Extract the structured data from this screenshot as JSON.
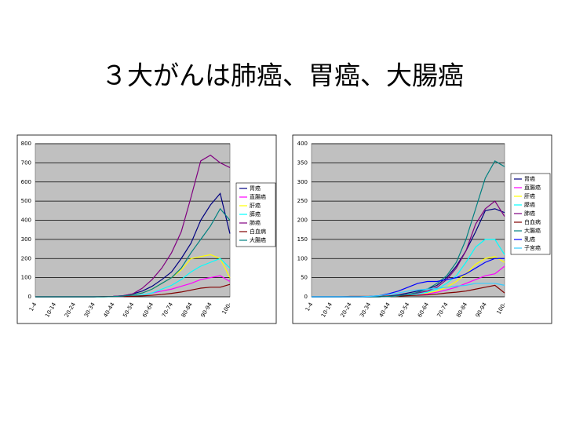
{
  "title": "３大がんは肺癌、胃癌、大腸癌",
  "chart_data": [
    {
      "type": "line",
      "categories": [
        "1-4",
        null,
        "10-14",
        null,
        "20-24",
        null,
        "30-34",
        null,
        "40-44",
        null,
        "50-54",
        null,
        "60-64",
        null,
        "70-74",
        null,
        "80-84",
        null,
        "90-94",
        null,
        "100-"
      ],
      "ylim": [
        0,
        800
      ],
      "yticks": [
        0,
        100,
        200,
        300,
        400,
        500,
        600,
        700,
        800
      ],
      "grid": true,
      "legend": "right",
      "series": [
        {
          "name": "胃癌",
          "color": "#000080",
          "values": [
            0,
            0,
            0,
            0,
            0,
            0,
            0,
            1,
            2,
            5,
            15,
            30,
            55,
            90,
            130,
            200,
            280,
            400,
            480,
            540,
            330
          ]
        },
        {
          "name": "直腸癌",
          "color": "#ff00ff",
          "values": [
            0,
            0,
            0,
            0,
            0,
            0,
            0,
            0,
            1,
            2,
            5,
            10,
            20,
            30,
            40,
            55,
            70,
            90,
            100,
            110,
            80
          ]
        },
        {
          "name": "肝癌",
          "color": "#ffff00",
          "values": [
            0,
            0,
            0,
            0,
            0,
            0,
            0,
            0,
            1,
            4,
            10,
            20,
            40,
            70,
            100,
            140,
            200,
            210,
            220,
            200,
            100
          ]
        },
        {
          "name": "膵癌",
          "color": "#00ffff",
          "values": [
            0,
            0,
            0,
            0,
            0,
            0,
            0,
            0,
            1,
            2,
            5,
            10,
            20,
            40,
            60,
            90,
            130,
            160,
            180,
            200,
            150
          ]
        },
        {
          "name": "肺癌",
          "color": "#800080",
          "values": [
            0,
            0,
            0,
            0,
            0,
            0,
            0,
            1,
            2,
            6,
            15,
            45,
            90,
            150,
            230,
            340,
            520,
            710,
            740,
            700,
            675
          ]
        },
        {
          "name": "白血病",
          "color": "#800000",
          "values": [
            0,
            0,
            0,
            0,
            0,
            0,
            0,
            1,
            1,
            2,
            3,
            5,
            8,
            12,
            18,
            25,
            35,
            45,
            50,
            50,
            65
          ]
        },
        {
          "name": "大腸癌",
          "color": "#008080",
          "values": [
            0,
            0,
            0,
            0,
            0,
            0,
            0,
            0,
            1,
            4,
            10,
            20,
            40,
            70,
            100,
            150,
            230,
            300,
            370,
            460,
            400
          ]
        }
      ]
    },
    {
      "type": "line",
      "categories": [
        "1-4",
        null,
        "10-14",
        null,
        "20-24",
        null,
        "30-34",
        null,
        "40-44",
        null,
        "50-54",
        null,
        "60-64",
        null,
        "70-74",
        null,
        "80-84",
        null,
        "90-94",
        null,
        "100-"
      ],
      "ylim": [
        0,
        400
      ],
      "yticks": [
        0,
        50,
        100,
        150,
        200,
        250,
        300,
        350,
        400
      ],
      "grid": true,
      "legend": "right",
      "series": [
        {
          "name": "胃癌",
          "color": "#000080",
          "values": [
            0,
            0,
            0,
            0,
            0,
            0,
            0,
            1,
            2,
            5,
            10,
            15,
            20,
            30,
            50,
            80,
            120,
            170,
            225,
            230,
            220
          ]
        },
        {
          "name": "直腸癌",
          "color": "#ff00ff",
          "values": [
            0,
            0,
            0,
            0,
            0,
            0,
            0,
            0,
            1,
            2,
            4,
            6,
            8,
            12,
            18,
            25,
            35,
            45,
            55,
            60,
            80
          ]
        },
        {
          "name": "肝癌",
          "color": "#ffff00",
          "values": [
            0,
            0,
            0,
            0,
            0,
            0,
            0,
            0,
            1,
            2,
            4,
            7,
            10,
            15,
            25,
            40,
            60,
            85,
            100,
            105,
            90
          ]
        },
        {
          "name": "膵癌",
          "color": "#00ffff",
          "values": [
            0,
            0,
            0,
            0,
            0,
            0,
            0,
            0,
            1,
            2,
            4,
            7,
            12,
            20,
            35,
            55,
            90,
            130,
            150,
            150,
            110
          ]
        },
        {
          "name": "肺癌",
          "color": "#800080",
          "values": [
            0,
            0,
            0,
            0,
            0,
            0,
            0,
            0,
            1,
            3,
            6,
            10,
            15,
            25,
            45,
            75,
            120,
            190,
            230,
            250,
            210
          ]
        },
        {
          "name": "白血病",
          "color": "#800000",
          "values": [
            0,
            0,
            0,
            0,
            1,
            1,
            1,
            1,
            2,
            2,
            3,
            4,
            5,
            7,
            10,
            12,
            15,
            20,
            25,
            30,
            10
          ]
        },
        {
          "name": "大腸癌",
          "color": "#008080",
          "values": [
            0,
            0,
            0,
            0,
            0,
            0,
            0,
            0,
            1,
            3,
            6,
            12,
            20,
            35,
            55,
            90,
            150,
            230,
            310,
            355,
            340
          ]
        },
        {
          "name": "乳癌",
          "color": "#0000ff",
          "values": [
            0,
            0,
            0,
            0,
            0,
            0,
            1,
            3,
            8,
            15,
            25,
            35,
            40,
            40,
            45,
            50,
            60,
            75,
            90,
            100,
            100
          ]
        },
        {
          "name": "子宮癌",
          "color": "#33ccff",
          "values": [
            0,
            0,
            0,
            0,
            0,
            0,
            1,
            3,
            6,
            10,
            15,
            18,
            20,
            22,
            25,
            28,
            30,
            35,
            35,
            35,
            30
          ]
        }
      ]
    }
  ]
}
